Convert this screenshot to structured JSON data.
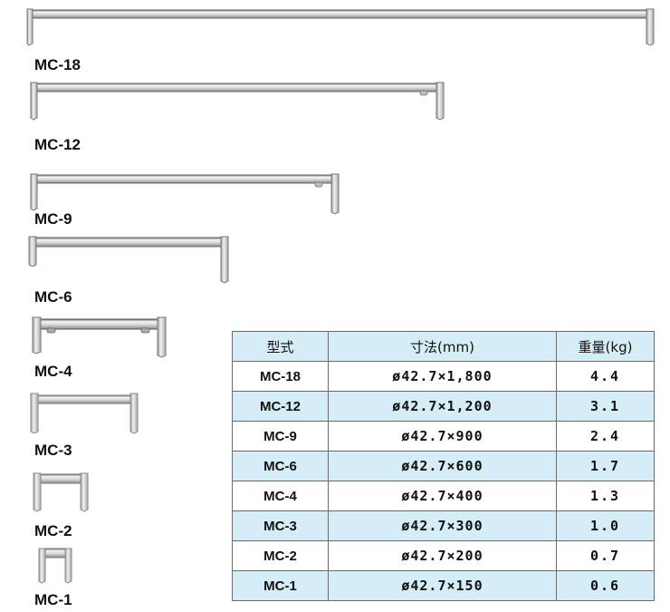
{
  "products": [
    {
      "model": "MC-18"
    },
    {
      "model": "MC-12"
    },
    {
      "model": "MC-9"
    },
    {
      "model": "MC-6"
    },
    {
      "model": "MC-4"
    },
    {
      "model": "MC-3"
    },
    {
      "model": "MC-2"
    },
    {
      "model": "MC-1"
    }
  ],
  "table": {
    "headers": [
      "型式",
      "寸法(mm)",
      "重量(kg)"
    ],
    "rows": [
      {
        "model": "MC-18",
        "dim": "ø42.7×1,800",
        "weight": "4.4"
      },
      {
        "model": "MC-12",
        "dim": "ø42.7×1,200",
        "weight": "3.1"
      },
      {
        "model": "MC-9",
        "dim": "ø42.7×900",
        "weight": "2.4"
      },
      {
        "model": "MC-6",
        "dim": "ø42.7×600",
        "weight": "1.7"
      },
      {
        "model": "MC-4",
        "dim": "ø42.7×400",
        "weight": "1.3"
      },
      {
        "model": "MC-3",
        "dim": "ø42.7×300",
        "weight": "1.0"
      },
      {
        "model": "MC-2",
        "dim": "ø42.7×200",
        "weight": "0.7"
      },
      {
        "model": "MC-1",
        "dim": "ø42.7×150",
        "weight": "0.6"
      }
    ]
  }
}
